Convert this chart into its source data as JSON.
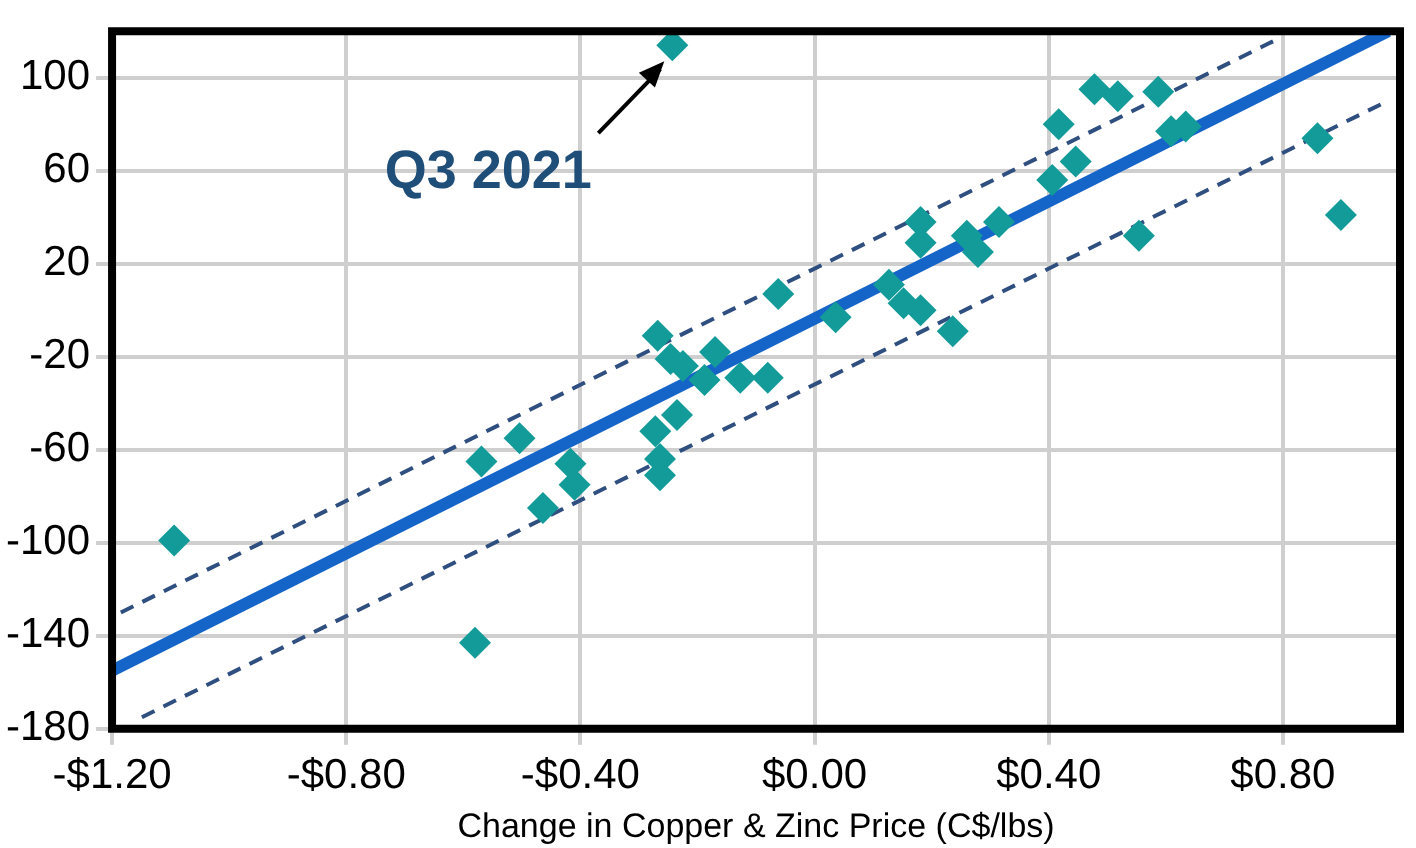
{
  "chart_data": {
    "type": "scatter",
    "xlabel": "Change in Copper & Zinc Price (C$/lbs)",
    "xlim": [
      -1.2,
      1.0
    ],
    "xticks": [
      {
        "value": -1.2,
        "label": "-$1.20"
      },
      {
        "value": -0.8,
        "label": "-$0.80"
      },
      {
        "value": -0.4,
        "label": "-$0.40"
      },
      {
        "value": 0,
        "label": "$0.00"
      },
      {
        "value": 0.4,
        "label": "$0.40"
      },
      {
        "value": 0.8,
        "label": "$0.80"
      }
    ],
    "ylim": [
      -180,
      120
    ],
    "yticks": [
      -180,
      -140,
      -100,
      -60,
      -20,
      20,
      60,
      100
    ],
    "grid": true,
    "legend": false,
    "series": [
      {
        "type": "scatter",
        "marker": "diamond",
        "color": "#129b98",
        "x": [
          -0.243,
          -1.094,
          -0.58,
          -0.569,
          -0.504,
          -0.417,
          -0.41,
          -0.464,
          -0.268,
          -0.246,
          -0.225,
          -0.272,
          -0.235,
          -0.264,
          -0.264,
          -0.17,
          -0.188,
          -0.127,
          -0.08,
          -0.062,
          0.036,
          0.127,
          0.152,
          0.181,
          0.236,
          0.181,
          0.181,
          0.26,
          0.279,
          0.315,
          0.417,
          0.406,
          0.446,
          0.478,
          0.518,
          0.587,
          0.609,
          0.634,
          0.554,
          0.859,
          0.899
        ],
        "values": [
          114,
          -99,
          -143,
          -65,
          -55,
          -66,
          -75,
          -85,
          -11,
          -21,
          -24,
          -52,
          -45,
          -64,
          -71,
          -18,
          -30,
          -29,
          -29,
          7,
          -3,
          11,
          3,
          0,
          -9,
          38,
          29,
          32,
          25,
          38,
          80,
          56,
          64,
          95,
          92,
          94,
          77,
          79,
          32,
          74,
          41
        ]
      },
      {
        "type": "line",
        "marker": "none",
        "line_style": "solid",
        "color": "#1565c8",
        "x": [
          -1.2,
          0.98
        ],
        "values": [
          -155,
          120
        ]
      },
      {
        "type": "line",
        "marker": "none",
        "line_style": "dashed",
        "color": "#2f4f80",
        "x": [
          -1.185,
          0.786
        ],
        "values": [
          -130,
          116
        ]
      },
      {
        "type": "line",
        "marker": "none",
        "line_style": "dashed",
        "color": "#2f4f80",
        "x": [
          -1.149,
          0.971
        ],
        "values": [
          -175,
          89
        ]
      }
    ],
    "annotations": [
      {
        "text": "Q3 2021",
        "x": -0.243,
        "y": 114
      }
    ]
  }
}
